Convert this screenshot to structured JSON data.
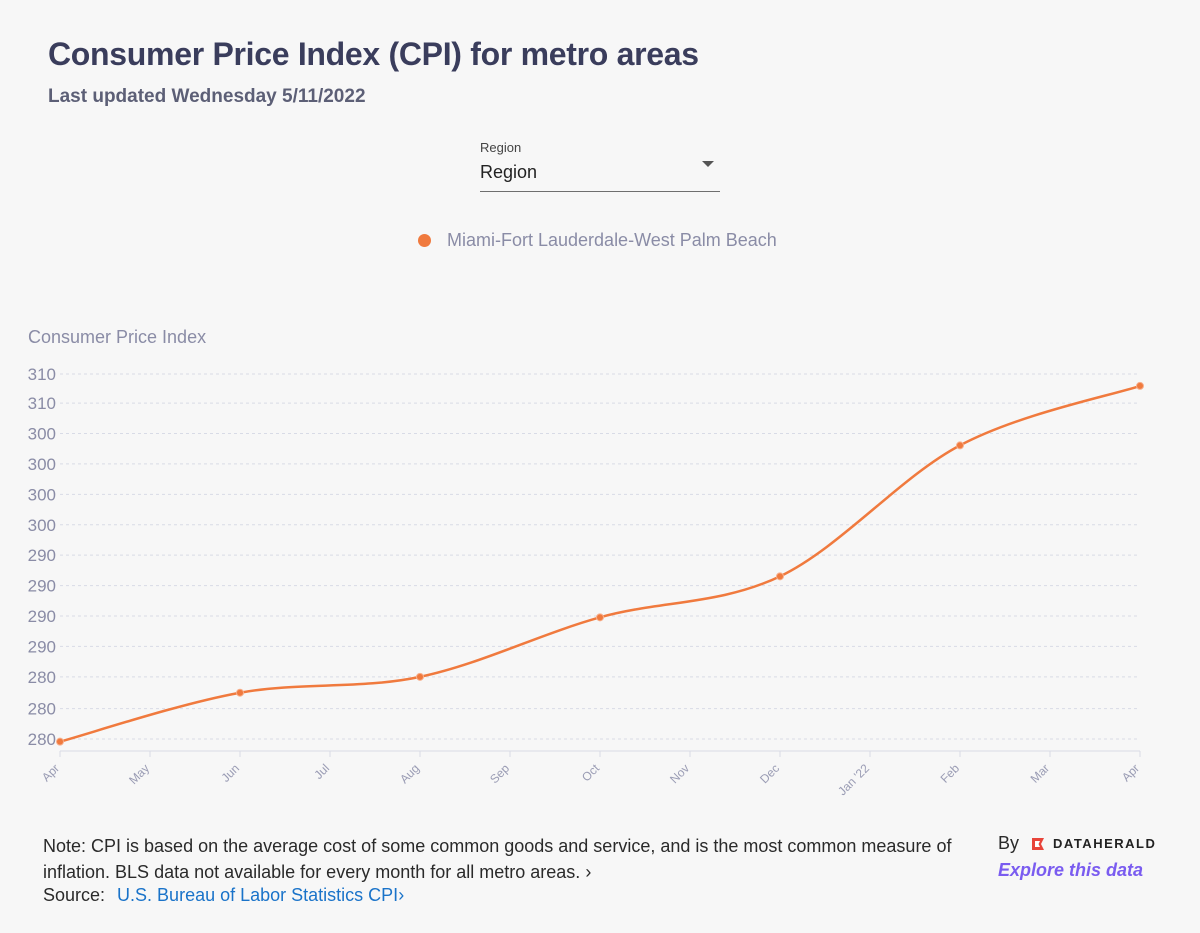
{
  "header": {
    "title": "Consumer Price Index (CPI) for metro areas",
    "subtitle": "Last updated Wednesday 5/11/2022"
  },
  "region_select": {
    "label": "Region",
    "value": "Region"
  },
  "colors": {
    "series": "#f07a3e",
    "grid": "#d8dbe6",
    "axis_text": "#8a8ca6"
  },
  "chart_data": {
    "type": "line",
    "xlabel": "",
    "ylabel": "Consumer Price Index",
    "x": [
      "Apr",
      "May",
      "Jun",
      "Jul",
      "Aug",
      "Sep",
      "Oct",
      "Nov",
      "Dec",
      "Jan '22",
      "Feb",
      "Mar",
      "Apr"
    ],
    "series": [
      {
        "name": "Miami-Fort Lauderdale-West Palm Beach",
        "points": [
          {
            "x": "Apr",
            "y": 279.8
          },
          {
            "x": "Jun",
            "y": 283.5
          },
          {
            "x": "Aug",
            "y": 284.7
          },
          {
            "x": "Oct",
            "y": 289.2
          },
          {
            "x": "Dec",
            "y": 292.3
          },
          {
            "x": "Feb",
            "y": 302.2
          },
          {
            "x": "Apr",
            "y": 306.7
          }
        ]
      }
    ],
    "ylim": [
      279.4,
      307.6
    ],
    "y_ticks": [
      280,
      282.3,
      284.7,
      287,
      289.3,
      291.6,
      293.9,
      296.2,
      298.5,
      300.8,
      303.1,
      305.4,
      307.6
    ],
    "y_tick_labels": [
      "280",
      "280",
      "280",
      "290",
      "290",
      "290",
      "290",
      "300",
      "300",
      "300",
      "300",
      "310",
      "310"
    ],
    "grid": true,
    "legend_position": "top-center"
  },
  "footer": {
    "note": "Note: CPI is based on the average cost of some common goods and service, and is the most common measure of inflation. BLS data not available for every month for all metro areas.",
    "note_chevron": "›",
    "source_label": "Source:",
    "source_link": "U.S. Bureau of Labor Statistics CPI",
    "source_chevron": "›",
    "by": "By",
    "brand": "DATAHERALD",
    "explore": "Explore this data"
  }
}
